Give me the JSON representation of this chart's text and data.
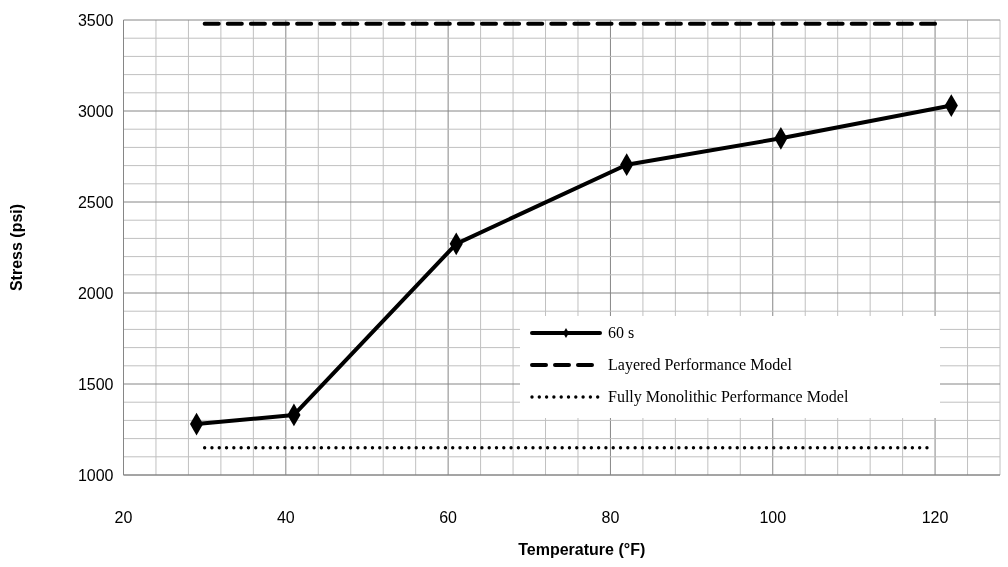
{
  "chart_data": {
    "type": "line",
    "xlabel": "Temperature  (°F)",
    "ylabel": "Stress (psi)",
    "xlim": [
      20,
      128
    ],
    "ylim": [
      1000,
      3500
    ],
    "xticks": [
      20,
      {
        "value": 24,
        "label": null
      },
      {
        "value": 28,
        "label": null
      },
      {
        "value": 32,
        "label": null
      },
      {
        "value": 36,
        "label": null
      },
      40,
      {
        "value": 44,
        "label": null
      },
      {
        "value": 48,
        "label": null
      },
      {
        "value": 52,
        "label": null
      },
      {
        "value": 56,
        "label": null
      },
      60,
      {
        "value": 64,
        "label": null
      },
      {
        "value": 68,
        "label": null
      },
      {
        "value": 72,
        "label": null
      },
      {
        "value": 76,
        "label": null
      },
      80,
      {
        "value": 84,
        "label": null
      },
      {
        "value": 88,
        "label": null
      },
      {
        "value": 92,
        "label": null
      },
      {
        "value": 96,
        "label": null
      },
      100,
      {
        "value": 104,
        "label": null
      },
      {
        "value": 108,
        "label": null
      },
      {
        "value": 112,
        "label": null
      },
      {
        "value": 116,
        "label": null
      },
      120,
      {
        "value": 124,
        "label": null
      },
      {
        "value": 128,
        "label": null
      }
    ],
    "yticks": [
      1000,
      {
        "value": 1100,
        "label": null
      },
      {
        "value": 1200,
        "label": null
      },
      {
        "value": 1300,
        "label": null
      },
      {
        "value": 1400,
        "label": null
      },
      1500,
      {
        "value": 1600,
        "label": null
      },
      {
        "value": 1700,
        "label": null
      },
      {
        "value": 1800,
        "label": null
      },
      {
        "value": 1900,
        "label": null
      },
      2000,
      {
        "value": 2100,
        "label": null
      },
      {
        "value": 2200,
        "label": null
      },
      {
        "value": 2300,
        "label": null
      },
      {
        "value": 2400,
        "label": null
      },
      2500,
      {
        "value": 2600,
        "label": null
      },
      {
        "value": 2700,
        "label": null
      },
      {
        "value": 2800,
        "label": null
      },
      {
        "value": 2900,
        "label": null
      },
      3000,
      {
        "value": 3100,
        "label": null
      },
      {
        "value": 3200,
        "label": null
      },
      {
        "value": 3300,
        "label": null
      },
      {
        "value": 3400,
        "label": null
      },
      3500
    ],
    "grid": true,
    "legend": "bottom right",
    "series": [
      {
        "name": "60 s",
        "color": "#000000",
        "x": [
          29,
          41,
          61,
          82,
          101,
          122
        ],
        "values": [
          1280,
          1330,
          2270,
          2705,
          2850,
          3030
        ],
        "marker": "diamond",
        "line_style": "solid"
      },
      {
        "name": "Layered Performance Model",
        "color": "#000000",
        "x": [
          30,
          120
        ],
        "values": [
          3480,
          3480
        ],
        "marker": "none",
        "line_style": "dashed"
      },
      {
        "name": "Fully Monolithic Performance Model",
        "color": "#000000",
        "x": [
          30,
          119
        ],
        "values": [
          1150,
          1150
        ],
        "marker": "none",
        "line_style": "dotted"
      }
    ]
  }
}
